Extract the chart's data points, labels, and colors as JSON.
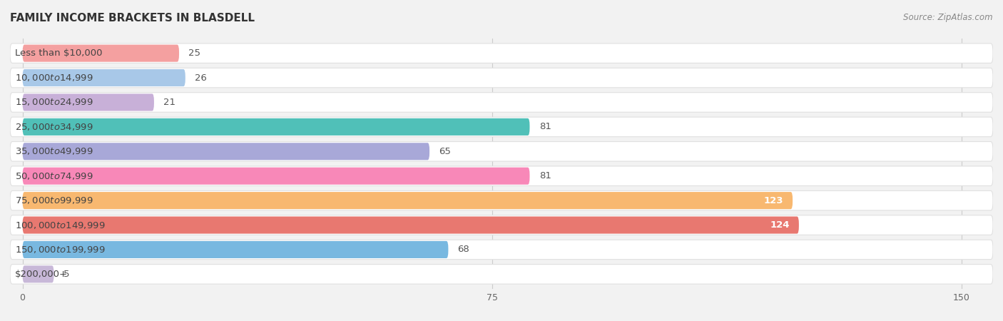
{
  "title": "FAMILY INCOME BRACKETS IN BLASDELL",
  "source": "Source: ZipAtlas.com",
  "categories": [
    "Less than $10,000",
    "$10,000 to $14,999",
    "$15,000 to $24,999",
    "$25,000 to $34,999",
    "$35,000 to $49,999",
    "$50,000 to $74,999",
    "$75,000 to $99,999",
    "$100,000 to $149,999",
    "$150,000 to $199,999",
    "$200,000+"
  ],
  "values": [
    25,
    26,
    21,
    81,
    65,
    81,
    123,
    124,
    68,
    5
  ],
  "bar_colors": [
    "#f4a0a0",
    "#a8c8e8",
    "#c8b0d8",
    "#50c0b8",
    "#a8a8d8",
    "#f888b8",
    "#f8b870",
    "#e87870",
    "#78b8e0",
    "#c8b8d8"
  ],
  "xlim": [
    -2,
    155
  ],
  "xticks": [
    0,
    75,
    150
  ],
  "background_color": "#f2f2f2",
  "row_bg_color": "#ffffff",
  "row_border_color": "#e0e0e0",
  "label_fontsize": 9.5,
  "value_fontsize": 9.5,
  "title_fontsize": 11,
  "title_color": "#333333",
  "source_color": "#888888"
}
